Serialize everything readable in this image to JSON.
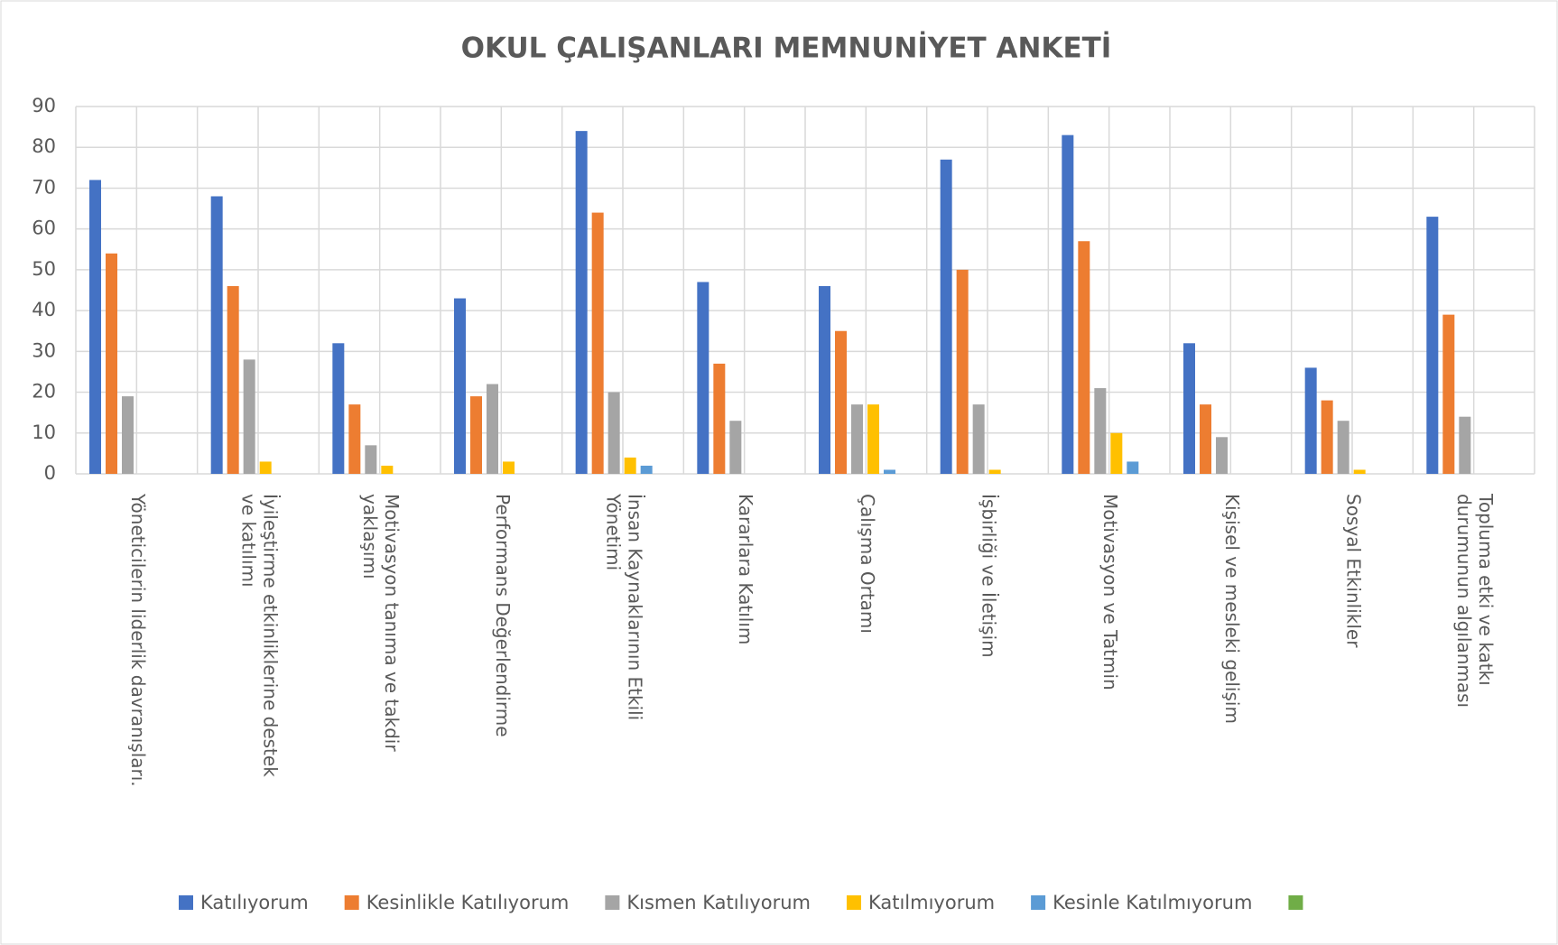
{
  "chart_data": {
    "type": "bar",
    "title": "OKUL ÇALIŞANLARI  MEMNUNİYET ANKETİ",
    "categories": [
      [
        "Yöneticilerin  liderlik  davranışları."
      ],
      [
        "İyileştirme  etkinliklerine  destek",
        "ve katılımı"
      ],
      [
        "Motivasyon tanıma ve takdir",
        "yaklaşımı"
      ],
      [
        "Performans Değerlendirme"
      ],
      [
        "İnsan Kaynaklarının  Etkili",
        "Yönetimi"
      ],
      [
        "Kararlara Katılım"
      ],
      [
        "Çalışma  Ortamı"
      ],
      [
        "İşbirliği  ve İletişim"
      ],
      [
        "Motivasyon ve Tatmin"
      ],
      [
        "Kişisel  ve mesleki gelişim"
      ],
      [
        "Sosyal Etkinlikler"
      ],
      [
        "Topluma  etki ve katkı",
        "durumunun algılanması"
      ]
    ],
    "series": [
      {
        "name": "Katılıyorum",
        "color": "#4472c4",
        "values": [
          72,
          68,
          32,
          43,
          84,
          47,
          46,
          77,
          83,
          32,
          26,
          63
        ]
      },
      {
        "name": "Kesinlikle Katılıyorum",
        "color": "#ed7d31",
        "values": [
          54,
          46,
          17,
          19,
          64,
          27,
          35,
          50,
          57,
          17,
          18,
          39
        ]
      },
      {
        "name": "Kısmen Katılıyorum",
        "color": "#a5a5a5",
        "values": [
          19,
          28,
          7,
          22,
          20,
          13,
          17,
          17,
          21,
          9,
          13,
          14
        ]
      },
      {
        "name": "Katılmıyorum",
        "color": "#ffc000",
        "values": [
          0,
          3,
          2,
          3,
          4,
          0,
          17,
          1,
          10,
          0,
          1,
          0
        ]
      },
      {
        "name": "Kesinle Katılmıyorum",
        "color": "#5b9bd5",
        "values": [
          0,
          0,
          0,
          0,
          2,
          0,
          1,
          0,
          3,
          0,
          0,
          0
        ]
      },
      {
        "color": "#70ad47",
        "values": [
          null,
          null,
          null,
          null,
          null,
          null,
          null,
          null,
          null,
          null,
          null,
          null
        ]
      }
    ],
    "ylim": [
      0,
      90
    ],
    "yticks": [
      0,
      10,
      20,
      30,
      40,
      50,
      60,
      70,
      80,
      90
    ],
    "grid": true,
    "legend": "bottom"
  }
}
